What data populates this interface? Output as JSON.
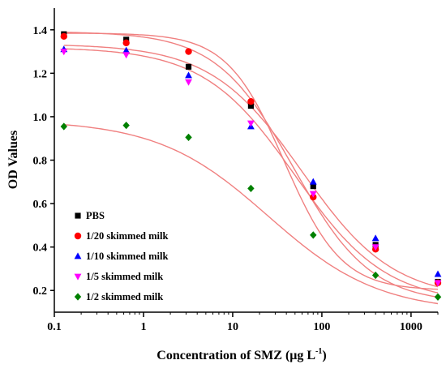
{
  "chart_data": {
    "type": "scatter",
    "title": "",
    "xlabel": "Concentration of SMZ (μg L",
    "xlabel_sup": "-1",
    "xlabel_close": ")",
    "ylabel": "OD Values",
    "xscale": "log",
    "xlim": [
      0.1,
      2000
    ],
    "ylim": [
      0.1,
      1.5
    ],
    "xticks": [
      0.1,
      1,
      10,
      100,
      1000
    ],
    "xtick_labels": [
      "0.1",
      "1",
      "10",
      "100",
      "1000"
    ],
    "yticks": [
      0.2,
      0.4,
      0.6,
      0.8,
      1.0,
      1.2,
      1.4
    ],
    "ytick_labels": [
      "0.2",
      "0.4",
      "0.6",
      "0.8",
      "1.0",
      "1.2",
      "1.4"
    ],
    "grid": false,
    "legend_position": "bottom-left",
    "fit_line_color": "#f08080",
    "x": [
      0.128,
      0.64,
      3.2,
      16,
      80,
      400,
      2000
    ],
    "series": [
      {
        "name": "PBS",
        "marker": "square",
        "color": "#000000",
        "values": [
          1.38,
          1.355,
          1.23,
          1.05,
          0.68,
          0.41,
          0.24
        ],
        "fit": {
          "top": 1.392,
          "bottom": 0.14,
          "ic50": 48,
          "slope": 1.0
        }
      },
      {
        "name": "1/20 skimmed milk",
        "marker": "circle",
        "color": "#ff0000",
        "values": [
          1.37,
          1.34,
          1.3,
          1.07,
          0.63,
          0.39,
          0.235
        ],
        "fit": {
          "top": 1.385,
          "bottom": 0.2,
          "ic50": 38,
          "slope": 1.35
        }
      },
      {
        "name": "1/10 skimmed milk",
        "marker": "triangle-up",
        "color": "#0000ff",
        "values": [
          1.31,
          1.305,
          1.19,
          0.955,
          0.7,
          0.44,
          0.275
        ],
        "fit": {
          "top": 1.335,
          "bottom": 0.16,
          "ic50": 60,
          "slope": 0.85
        }
      },
      {
        "name": "1/5 skimmed milk",
        "marker": "triangle-down",
        "color": "#ff00ff",
        "values": [
          1.3,
          1.285,
          1.16,
          0.97,
          0.645,
          0.4,
          0.235
        ],
        "fit": {
          "top": 1.32,
          "bottom": 0.14,
          "ic50": 50,
          "slope": 0.85
        }
      },
      {
        "name": "1/2 skimmed milk",
        "marker": "diamond",
        "color": "#008000",
        "values": [
          0.955,
          0.96,
          0.905,
          0.67,
          0.455,
          0.27,
          0.17
        ],
        "fit": {
          "top": 0.985,
          "bottom": 0.1,
          "ic50": 25,
          "slope": 0.7
        }
      }
    ]
  }
}
